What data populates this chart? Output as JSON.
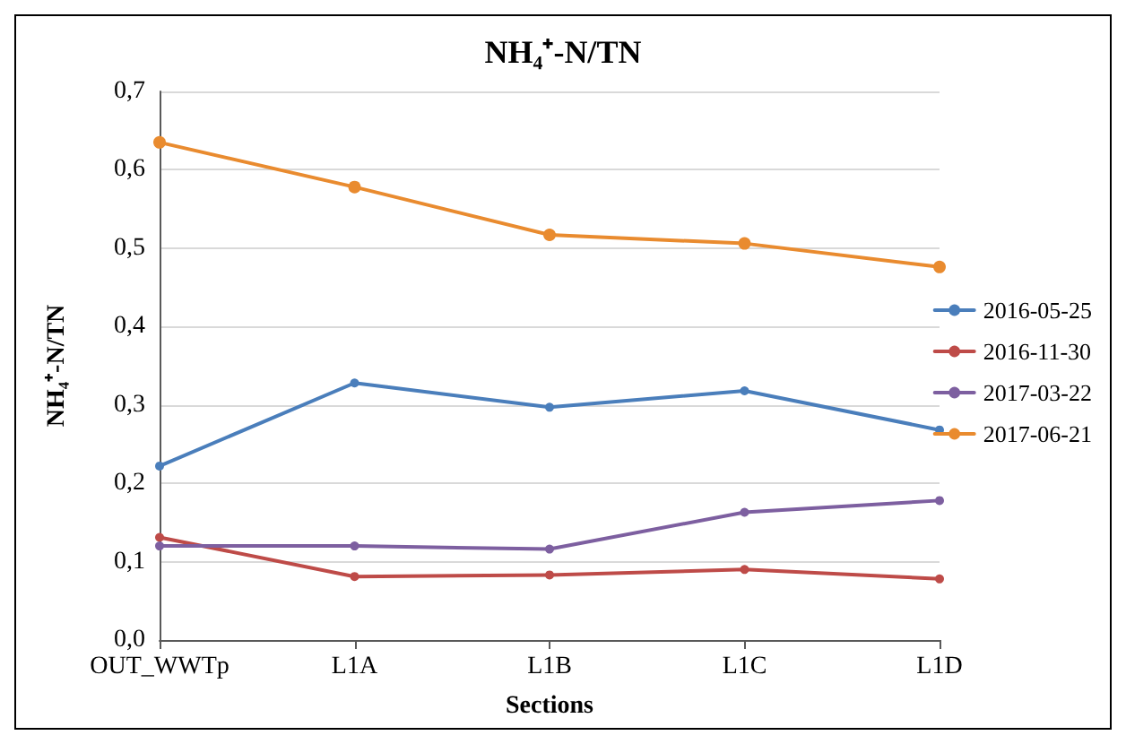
{
  "chart_data": {
    "type": "line",
    "title": "NH₄⁺-N/TN",
    "xlabel": "Sections",
    "ylabel": "NH₄⁺-N/TN",
    "categories": [
      "OUT_WWTp",
      "L1A",
      "L1B",
      "L1C",
      "L1D"
    ],
    "series": [
      {
        "name": "2016-05-25",
        "color": "#4a7ebb",
        "values": [
          0.222,
          0.328,
          0.297,
          0.318,
          0.268
        ]
      },
      {
        "name": "2016-11-30",
        "color": "#be4b48",
        "values": [
          0.131,
          0.081,
          0.083,
          0.09,
          0.078
        ]
      },
      {
        "name": "2017-03-22",
        "color": "#7d5fa0",
        "values": [
          0.12,
          0.12,
          0.116,
          0.163,
          0.178
        ]
      },
      {
        "name": "2017-06-21",
        "color": "#e98b2f",
        "values": [
          0.635,
          0.578,
          0.517,
          0.506,
          0.476
        ]
      }
    ],
    "ylim": [
      0,
      0.7
    ],
    "yticks": [
      {
        "value": 0,
        "label": "0,0"
      },
      {
        "value": 0.1,
        "label": "0,1"
      },
      {
        "value": 0.2,
        "label": "0,2"
      },
      {
        "value": 0.3,
        "label": "0,3"
      },
      {
        "value": 0.4,
        "label": "0,4"
      },
      {
        "value": 0.5,
        "label": "0,5"
      },
      {
        "value": 0.6,
        "label": "0,6"
      },
      {
        "value": 0.7,
        "label": "0,7"
      }
    ],
    "grid": "y",
    "legend": "right",
    "marker": "circle",
    "line_style": "solid"
  }
}
